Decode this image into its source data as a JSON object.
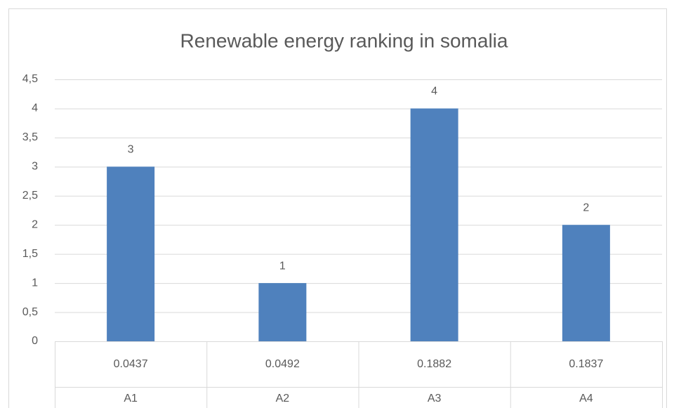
{
  "chart_data": {
    "type": "bar",
    "title": "Renewable energy ranking in somalia",
    "categories": [
      "A1",
      "A2",
      "A3",
      "A4"
    ],
    "sub_categories": [
      "0.0437",
      "0.0492",
      "0.1882",
      "0.1837"
    ],
    "values": [
      3,
      1,
      4,
      2
    ],
    "color": "#4f81bd",
    "ylim": [
      0,
      4.5
    ],
    "yticks": [
      0,
      {
        "value": 0.5,
        "label": "0,5"
      },
      1,
      {
        "value": 1.5,
        "label": "1,5"
      },
      2,
      {
        "value": 2.5,
        "label": "2,5"
      },
      3,
      {
        "value": 3.5,
        "label": "3,5"
      },
      4,
      {
        "value": 4.5,
        "label": "4,5"
      }
    ],
    "grid": true
  }
}
